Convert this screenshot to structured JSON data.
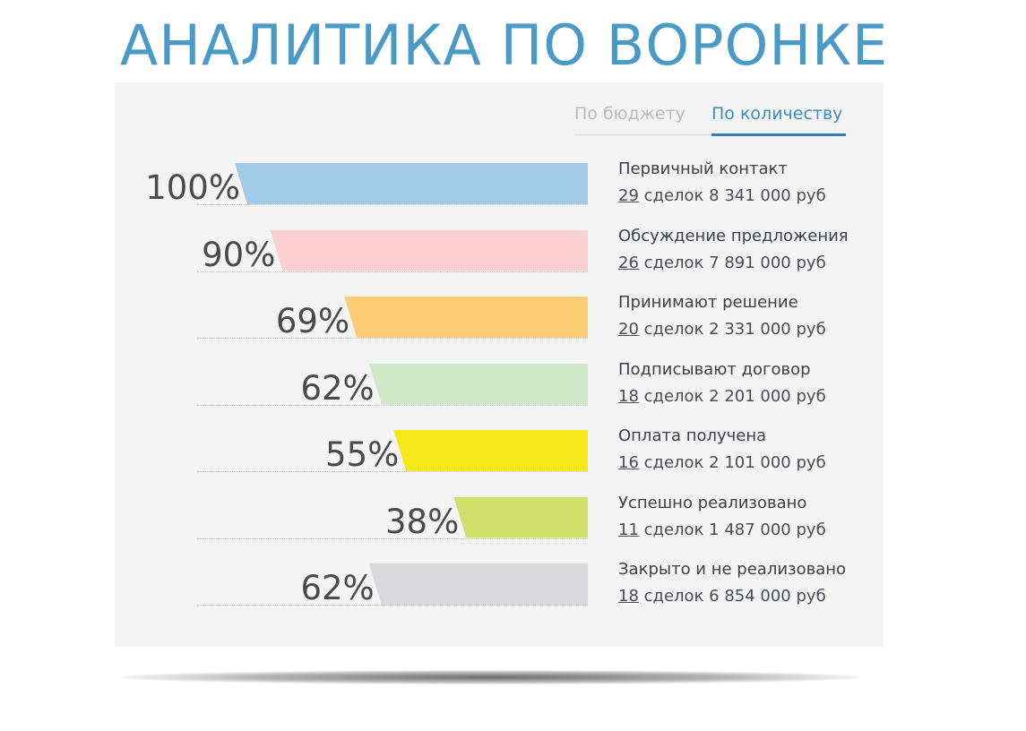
{
  "title": "АНАЛИТИКА ПО ВОРОНКЕ",
  "tabs": [
    {
      "label": "По бюджету",
      "active": false
    },
    {
      "label": "По количеству",
      "active": true
    }
  ],
  "stages": [
    {
      "percent": "100%",
      "value": 100,
      "name": "Первичный контакт",
      "deals": "29",
      "deals_text": "сделок 8 341 000 руб",
      "color": "#a3cbe8"
    },
    {
      "percent": "90%",
      "value": 90,
      "name": "Обсуждение предложения",
      "deals": "26",
      "deals_text": "сделок 7 891 000 руб",
      "color": "#fccfd0"
    },
    {
      "percent": "69%",
      "value": 69,
      "name": "Принимают решение",
      "deals": "20",
      "deals_text": "сделок 2 331 000 руб",
      "color": "#fdcd73"
    },
    {
      "percent": "62%",
      "value": 62,
      "name": "Подписывают договор",
      "deals": "18",
      "deals_text": "сделок 2 201 000 руб",
      "color": "#cfe8c7"
    },
    {
      "percent": "55%",
      "value": 55,
      "name": "Оплата получена",
      "deals": "16",
      "deals_text": "сделок 2 101 000 руб",
      "color": "#f5e81a"
    },
    {
      "percent": "38%",
      "value": 38,
      "name": "Успешно реализовано",
      "deals": "11",
      "deals_text": "сделок 1 487 000 руб",
      "color": "#cfe06b"
    },
    {
      "percent": "62%",
      "value": 62,
      "name": "Закрыто и не реализовано",
      "deals": "18",
      "deals_text": "сделок 6 854 000 руб",
      "color": "#d9d9db"
    }
  ]
}
